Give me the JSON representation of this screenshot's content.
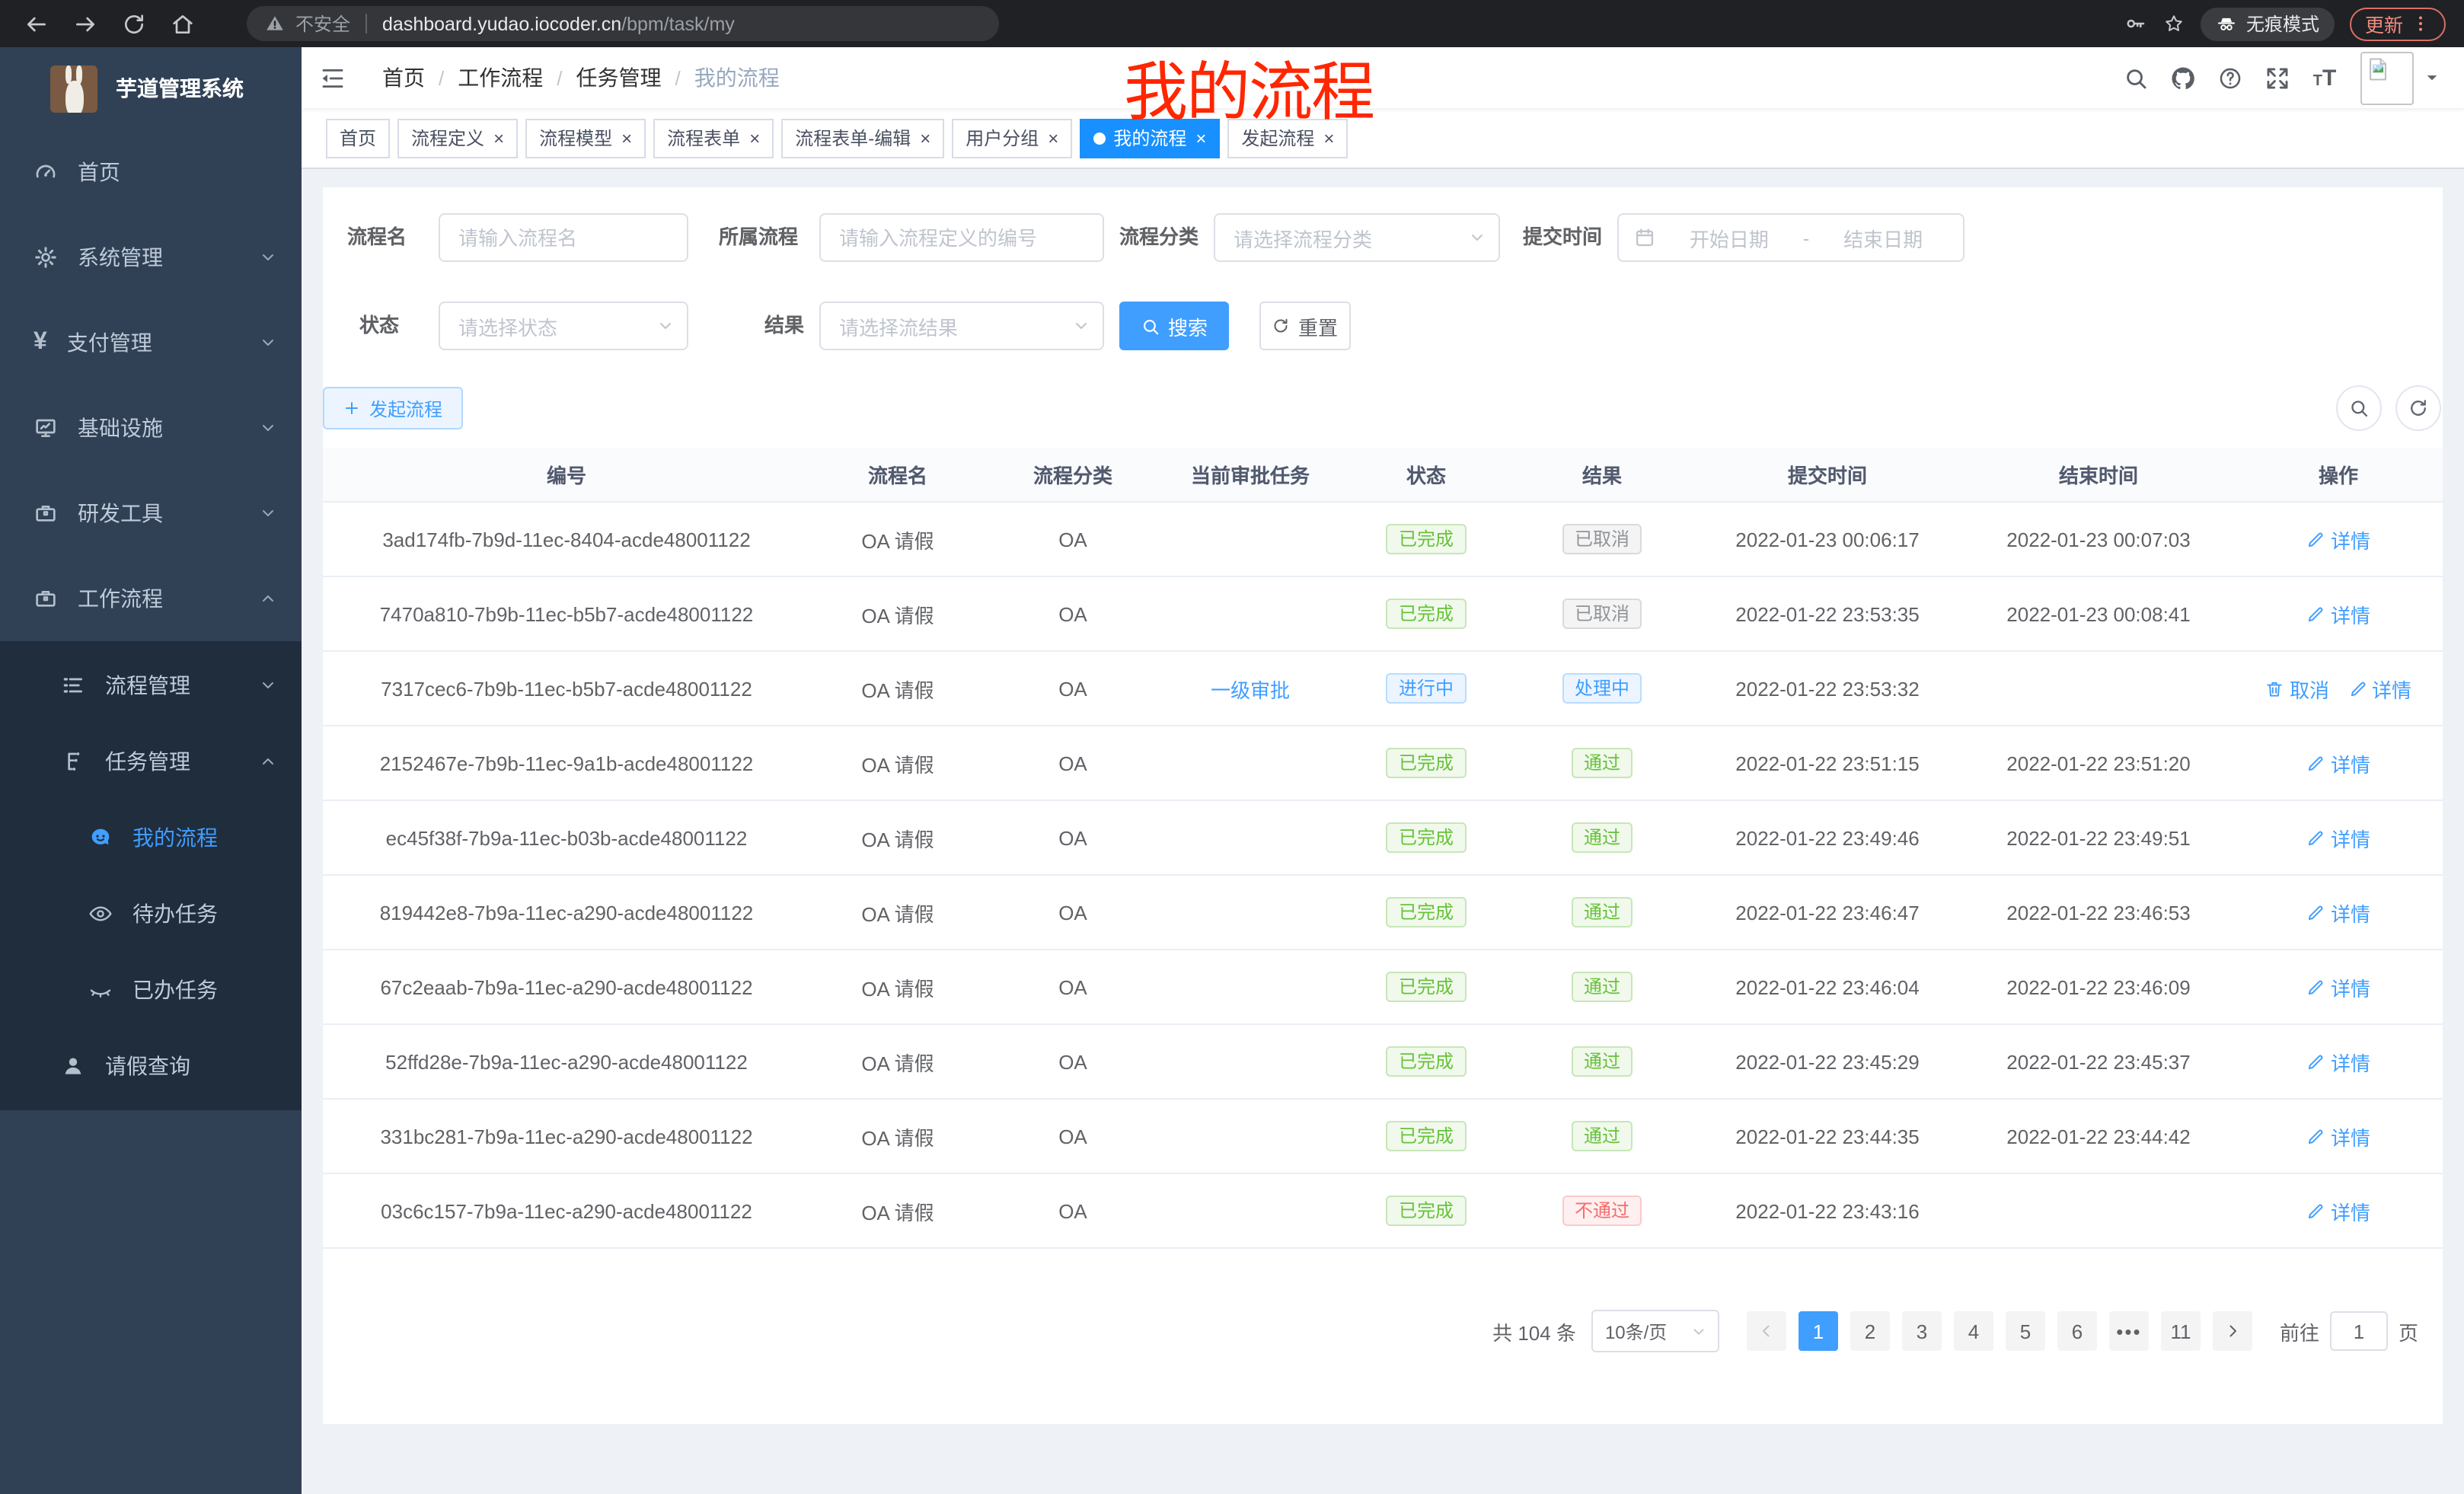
{
  "browser": {
    "security_label": "不安全",
    "url_host": "dashboard.yudao.iocoder.cn",
    "url_path": "/bpm/task/my",
    "incognito_label": "无痕模式",
    "update_label": "更新"
  },
  "sidebar": {
    "title": "芋道管理系统",
    "menu": [
      {
        "label": "首页",
        "icon": "gauge-icon",
        "level": 1,
        "submenu": false
      },
      {
        "label": "系统管理",
        "icon": "gear-icon",
        "level": 1,
        "chevron": "down",
        "submenu": false
      },
      {
        "label": "支付管理",
        "icon": "yen-icon",
        "level": 1,
        "chevron": "down",
        "submenu": false
      },
      {
        "label": "基础设施",
        "icon": "monitor-icon",
        "level": 1,
        "chevron": "down",
        "submenu": false
      },
      {
        "label": "研发工具",
        "icon": "briefcase-icon",
        "level": 1,
        "chevron": "down",
        "submenu": false
      },
      {
        "label": "工作流程",
        "icon": "briefcase-icon",
        "level": 1,
        "chevron": "up",
        "submenu": false
      },
      {
        "label": "流程管理",
        "icon": "list-icon",
        "level": 2,
        "chevron": "down",
        "submenu": true
      },
      {
        "label": "任务管理",
        "icon": "tree-icon",
        "level": 2,
        "chevron": "up",
        "submenu": true
      },
      {
        "label": "我的流程",
        "icon": "face-icon",
        "level": 3,
        "active": true,
        "submenu": true
      },
      {
        "label": "待办任务",
        "icon": "eye-icon",
        "level": 3,
        "submenu": true
      },
      {
        "label": "已办任务",
        "icon": "eye-closed-icon",
        "level": 3,
        "submenu": true
      },
      {
        "label": "请假查询",
        "icon": "user-icon",
        "level": 2,
        "submenu": true
      }
    ]
  },
  "header": {
    "breadcrumb": [
      "首页",
      "工作流程",
      "任务管理",
      "我的流程"
    ]
  },
  "annotation": "我的流程",
  "tabs": [
    {
      "label": "首页",
      "closable": false,
      "active": false
    },
    {
      "label": "流程定义",
      "closable": true,
      "active": false
    },
    {
      "label": "流程模型",
      "closable": true,
      "active": false
    },
    {
      "label": "流程表单",
      "closable": true,
      "active": false
    },
    {
      "label": "流程表单-编辑",
      "closable": true,
      "active": false
    },
    {
      "label": "用户分组",
      "closable": true,
      "active": false
    },
    {
      "label": "我的流程",
      "closable": true,
      "active": true
    },
    {
      "label": "发起流程",
      "closable": true,
      "active": false
    }
  ],
  "filters": {
    "process_name": {
      "label": "流程名",
      "placeholder": "请输入流程名"
    },
    "parent_process": {
      "label": "所属流程",
      "placeholder": "请输入流程定义的编号"
    },
    "category": {
      "label": "流程分类",
      "placeholder": "请选择流程分类"
    },
    "submit_time": {
      "label": "提交时间",
      "start_placeholder": "开始日期",
      "separator": "-",
      "end_placeholder": "结束日期"
    },
    "status": {
      "label": "状态",
      "placeholder": "请选择状态"
    },
    "result": {
      "label": "结果",
      "placeholder": "请选择流结果"
    },
    "search_label": "搜索",
    "reset_label": "重置"
  },
  "toolbar": {
    "create_label": "发起流程"
  },
  "table": {
    "columns": [
      "编号",
      "流程名",
      "流程分类",
      "当前审批任务",
      "状态",
      "结果",
      "提交时间",
      "结束时间",
      "操作"
    ],
    "rows": [
      {
        "id": "3ad174fb-7b9d-11ec-8404-acde48001122",
        "name": "OA 请假",
        "category": "OA",
        "task": "",
        "status": {
          "text": "已完成",
          "type": "success"
        },
        "result": {
          "text": "已取消",
          "type": "info"
        },
        "submit_time": "2022-01-23 00:06:17",
        "end_time": "2022-01-23 00:07:03",
        "actions": [
          {
            "label": "详情",
            "icon": "edit-icon"
          }
        ]
      },
      {
        "id": "7470a810-7b9b-11ec-b5b7-acde48001122",
        "name": "OA 请假",
        "category": "OA",
        "task": "",
        "status": {
          "text": "已完成",
          "type": "success"
        },
        "result": {
          "text": "已取消",
          "type": "info"
        },
        "submit_time": "2022-01-22 23:53:35",
        "end_time": "2022-01-23 00:08:41",
        "actions": [
          {
            "label": "详情",
            "icon": "edit-icon"
          }
        ]
      },
      {
        "id": "7317cec6-7b9b-11ec-b5b7-acde48001122",
        "name": "OA 请假",
        "category": "OA",
        "task": "一级审批",
        "status": {
          "text": "进行中",
          "type": "primary"
        },
        "result": {
          "text": "处理中",
          "type": "primary"
        },
        "submit_time": "2022-01-22 23:53:32",
        "end_time": "",
        "actions": [
          {
            "label": "取消",
            "icon": "trash-icon"
          },
          {
            "label": "详情",
            "icon": "edit-icon"
          }
        ]
      },
      {
        "id": "2152467e-7b9b-11ec-9a1b-acde48001122",
        "name": "OA 请假",
        "category": "OA",
        "task": "",
        "status": {
          "text": "已完成",
          "type": "success"
        },
        "result": {
          "text": "通过",
          "type": "success"
        },
        "submit_time": "2022-01-22 23:51:15",
        "end_time": "2022-01-22 23:51:20",
        "actions": [
          {
            "label": "详情",
            "icon": "edit-icon"
          }
        ]
      },
      {
        "id": "ec45f38f-7b9a-11ec-b03b-acde48001122",
        "name": "OA 请假",
        "category": "OA",
        "task": "",
        "status": {
          "text": "已完成",
          "type": "success"
        },
        "result": {
          "text": "通过",
          "type": "success"
        },
        "submit_time": "2022-01-22 23:49:46",
        "end_time": "2022-01-22 23:49:51",
        "actions": [
          {
            "label": "详情",
            "icon": "edit-icon"
          }
        ]
      },
      {
        "id": "819442e8-7b9a-11ec-a290-acde48001122",
        "name": "OA 请假",
        "category": "OA",
        "task": "",
        "status": {
          "text": "已完成",
          "type": "success"
        },
        "result": {
          "text": "通过",
          "type": "success"
        },
        "submit_time": "2022-01-22 23:46:47",
        "end_time": "2022-01-22 23:46:53",
        "actions": [
          {
            "label": "详情",
            "icon": "edit-icon"
          }
        ]
      },
      {
        "id": "67c2eaab-7b9a-11ec-a290-acde48001122",
        "name": "OA 请假",
        "category": "OA",
        "task": "",
        "status": {
          "text": "已完成",
          "type": "success"
        },
        "result": {
          "text": "通过",
          "type": "success"
        },
        "submit_time": "2022-01-22 23:46:04",
        "end_time": "2022-01-22 23:46:09",
        "actions": [
          {
            "label": "详情",
            "icon": "edit-icon"
          }
        ]
      },
      {
        "id": "52ffd28e-7b9a-11ec-a290-acde48001122",
        "name": "OA 请假",
        "category": "OA",
        "task": "",
        "status": {
          "text": "已完成",
          "type": "success"
        },
        "result": {
          "text": "通过",
          "type": "success"
        },
        "submit_time": "2022-01-22 23:45:29",
        "end_time": "2022-01-22 23:45:37",
        "actions": [
          {
            "label": "详情",
            "icon": "edit-icon"
          }
        ]
      },
      {
        "id": "331bc281-7b9a-11ec-a290-acde48001122",
        "name": "OA 请假",
        "category": "OA",
        "task": "",
        "status": {
          "text": "已完成",
          "type": "success"
        },
        "result": {
          "text": "通过",
          "type": "success"
        },
        "submit_time": "2022-01-22 23:44:35",
        "end_time": "2022-01-22 23:44:42",
        "actions": [
          {
            "label": "详情",
            "icon": "edit-icon"
          }
        ]
      },
      {
        "id": "03c6c157-7b9a-11ec-a290-acde48001122",
        "name": "OA 请假",
        "category": "OA",
        "task": "",
        "status": {
          "text": "已完成",
          "type": "success"
        },
        "result": {
          "text": "不通过",
          "type": "danger"
        },
        "submit_time": "2022-01-22 23:43:16",
        "end_time": "",
        "actions": [
          {
            "label": "详情",
            "icon": "edit-icon"
          }
        ]
      }
    ]
  },
  "pagination": {
    "total": "共 104 条",
    "page_size": "10条/页",
    "pages": [
      "1",
      "2",
      "3",
      "4",
      "5",
      "6",
      "•••",
      "11"
    ],
    "active_page": "1",
    "goto_label": "前往",
    "goto_value": "1",
    "unit_label": "页"
  },
  "colors": {
    "accent": "#409eff",
    "active_tab": "#1890ff",
    "success": "#67c23a",
    "info": "#909399",
    "danger": "#f56c6c",
    "sidebar_bg": "#304156",
    "submenu_bg": "#1f2d3d",
    "update_button": "#f28b82"
  }
}
